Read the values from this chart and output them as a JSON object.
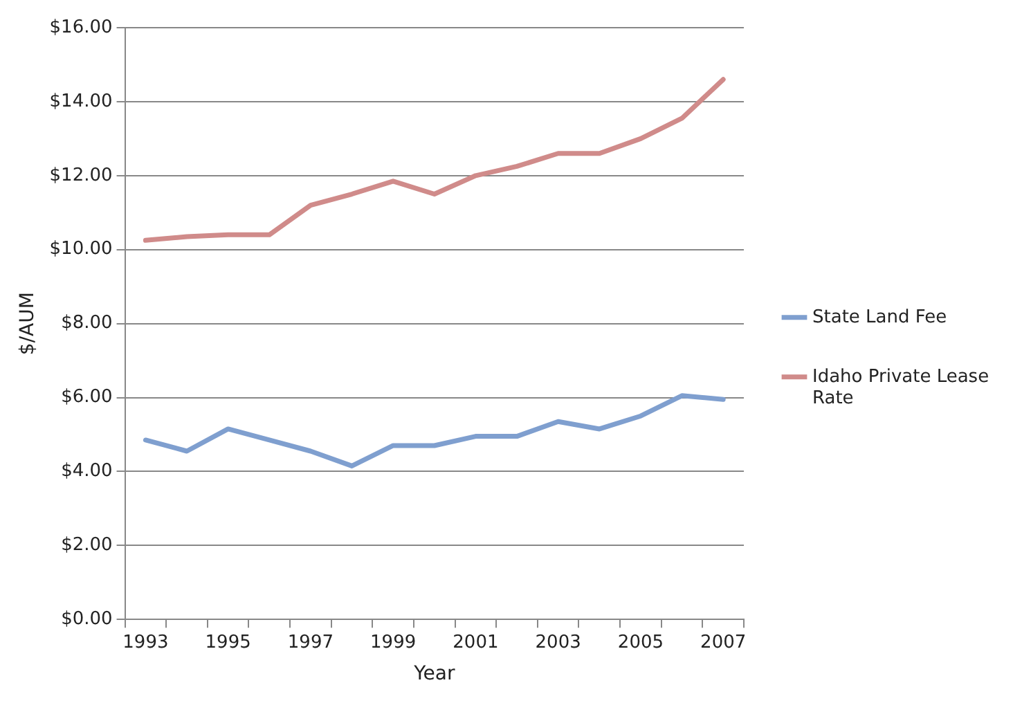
{
  "chart_data": {
    "type": "line",
    "xlabel": "Year",
    "ylabel": "$/AUM",
    "categories": [
      "1993",
      null,
      "1995",
      null,
      "1997",
      null,
      "1999",
      null,
      "2001",
      null,
      "2003",
      null,
      "2005",
      null,
      "2007"
    ],
    "series": [
      {
        "name": "State Land Fee",
        "color": "#7f9fcf",
        "values": [
          4.85,
          4.55,
          5.15,
          4.85,
          4.55,
          4.15,
          4.7,
          4.7,
          4.95,
          4.95,
          5.35,
          5.15,
          5.5,
          6.05,
          5.95
        ]
      },
      {
        "name": "Idaho Private Lease Rate",
        "color": "#d08b8a",
        "values": [
          10.25,
          10.35,
          10.4,
          10.4,
          11.2,
          11.5,
          11.85,
          11.5,
          12.0,
          12.25,
          12.6,
          12.6,
          13.0,
          13.55,
          14.6
        ]
      }
    ],
    "ylim": [
      0,
      16
    ],
    "yticks": [
      {
        "value": 0,
        "label": "$0.00"
      },
      {
        "value": 2,
        "label": "$2.00"
      },
      {
        "value": 4,
        "label": "$4.00"
      },
      {
        "value": 6,
        "label": "$6.00"
      },
      {
        "value": 8,
        "label": "$8.00"
      },
      {
        "value": 10,
        "label": "$10.00"
      },
      {
        "value": 12,
        "label": "$12.00"
      },
      {
        "value": 14,
        "label": "$14.00"
      },
      {
        "value": 16,
        "label": "$16.00"
      }
    ],
    "grid": "y",
    "legend": "right",
    "marker": "none",
    "line_style": "solid"
  }
}
